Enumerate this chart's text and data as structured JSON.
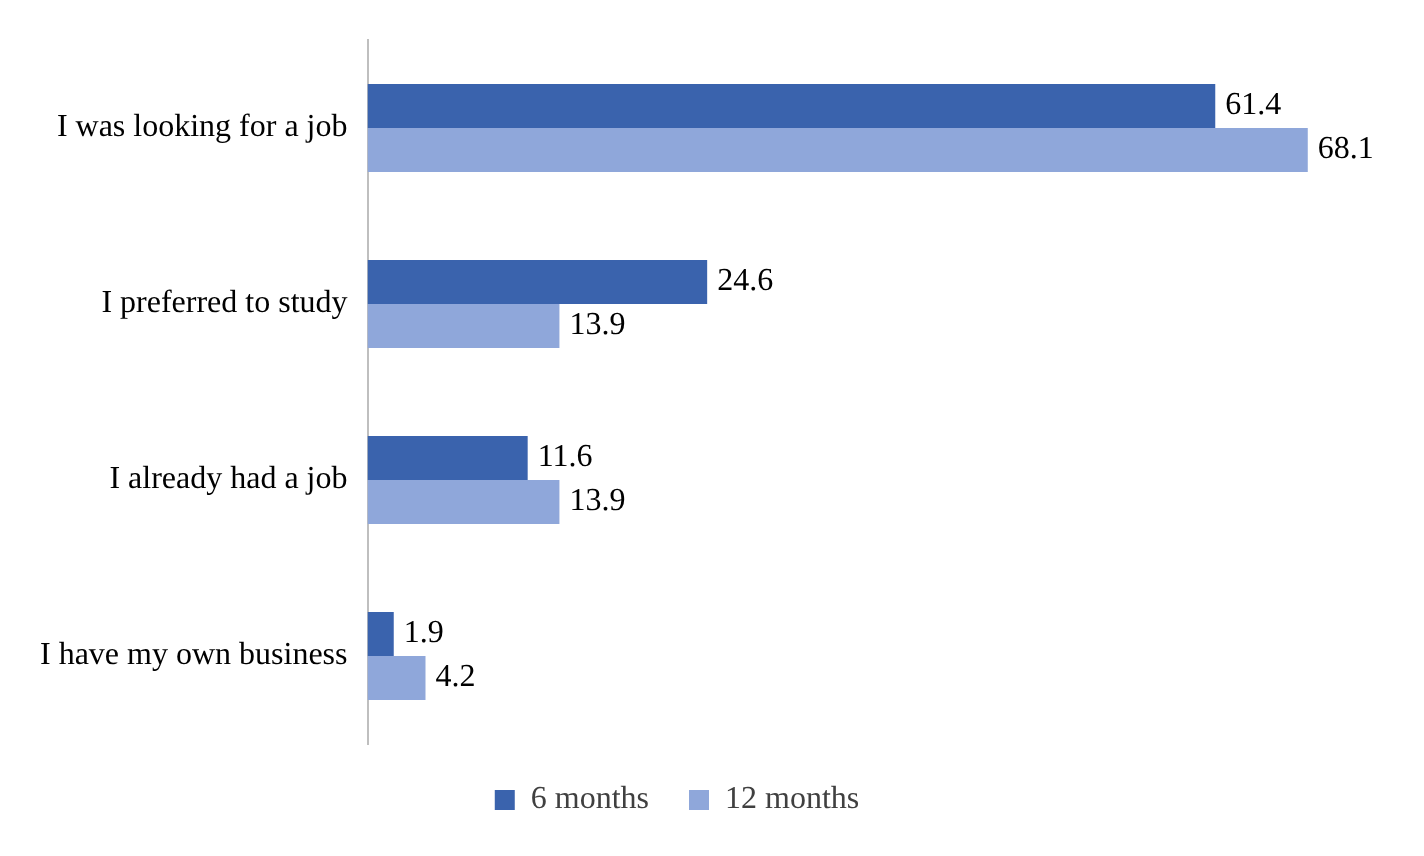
{
  "chart_data": {
    "type": "bar",
    "orientation": "horizontal",
    "categories": [
      "I was looking for a job",
      "I preferred to study",
      "I already had a job",
      "I have my own business"
    ],
    "series": [
      {
        "name": "6 months",
        "color": "#3a63ad",
        "values": [
          61.4,
          24.6,
          11.6,
          1.9
        ]
      },
      {
        "name": "12 months",
        "color": "#8fa7da",
        "values": [
          68.1,
          13.9,
          13.9,
          4.2
        ]
      }
    ],
    "data_labels": true,
    "legend": "bottom"
  }
}
